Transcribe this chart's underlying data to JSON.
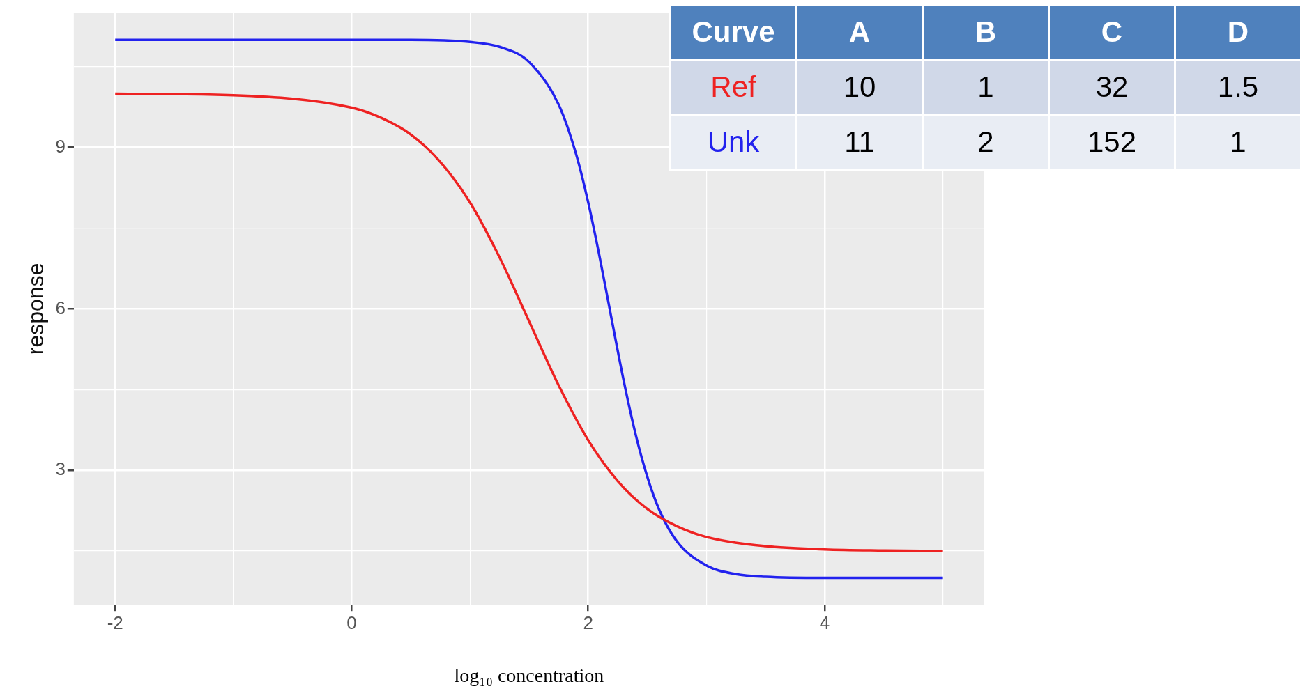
{
  "chart_data": {
    "type": "line",
    "xlabel": "log₁₀ concentration",
    "ylabel": "response",
    "xlim": [
      -2.35,
      5.35
    ],
    "ylim": [
      0.5,
      11.5
    ],
    "xticks": [
      -2,
      {
        "value": -1,
        "label": null
      },
      0,
      {
        "value": 1,
        "label": null
      },
      2,
      {
        "value": 3,
        "label": null
      },
      4,
      {
        "value": 5,
        "label": null
      }
    ],
    "yticks": [
      {
        "value": 1.5,
        "label": null
      },
      3,
      {
        "value": 4.5,
        "label": null
      },
      6,
      {
        "value": 7.5,
        "label": null
      },
      9,
      {
        "value": 10.5,
        "label": null
      }
    ],
    "grid": true,
    "legend": false,
    "marker": "none",
    "line_style": "solid",
    "series": [
      {
        "name": "Ref",
        "color": "#ee2222",
        "x": [
          -2,
          -1,
          0,
          0.25,
          0.5,
          0.75,
          1,
          1.25,
          1.5,
          1.75,
          2,
          2.25,
          2.5,
          2.75,
          3,
          3.5,
          4,
          4.5,
          5
        ],
        "values": [
          10.0,
          9.97,
          9.74,
          9.55,
          9.24,
          8.73,
          7.98,
          6.96,
          5.77,
          4.58,
          3.56,
          2.8,
          2.28,
          1.96,
          1.76,
          1.59,
          1.53,
          1.51,
          1.5
        ]
      },
      {
        "name": "Unk",
        "color": "#2222ee",
        "x": [
          -2,
          0,
          0.5,
          1,
          1.25,
          1.5,
          1.75,
          1.9,
          2,
          2.1,
          2.2,
          2.3,
          2.4,
          2.5,
          2.6,
          2.75,
          3,
          3.25,
          3.5,
          4,
          5
        ],
        "values": [
          11.0,
          11.0,
          11.0,
          10.96,
          10.87,
          10.59,
          9.8,
          8.86,
          7.98,
          6.93,
          5.79,
          4.67,
          3.68,
          2.88,
          2.27,
          1.68,
          1.23,
          1.07,
          1.02,
          1.0,
          1.0
        ]
      }
    ],
    "annotations": [
      "Curve",
      "A",
      "B",
      "C",
      "D",
      "10",
      "1",
      "32",
      "1.5",
      "11",
      "2",
      "152",
      "1"
    ]
  }
}
